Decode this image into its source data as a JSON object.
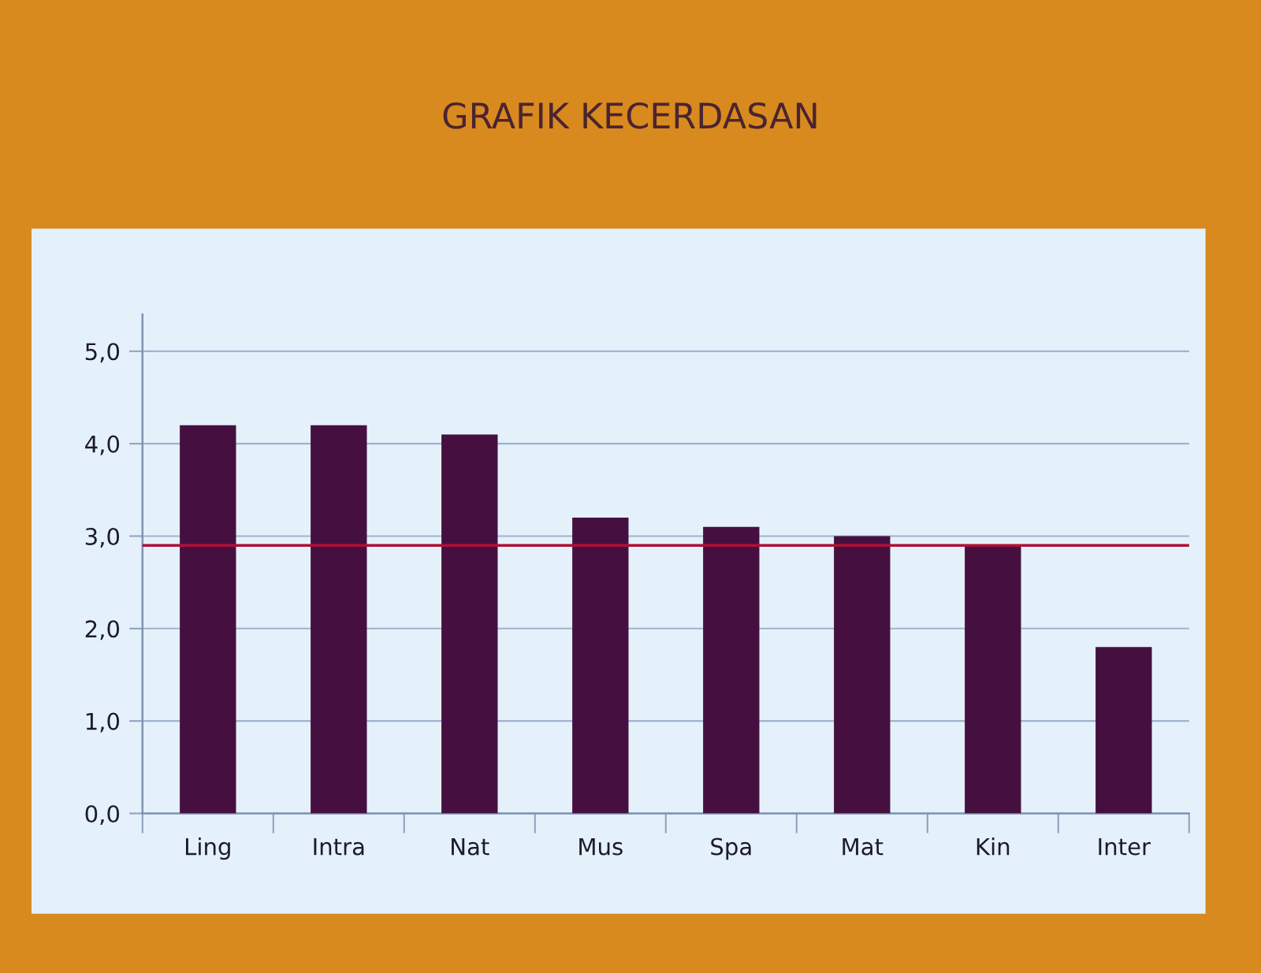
{
  "chart_data": {
    "type": "bar",
    "title": "GRAFIK KECERDASAN",
    "categories": [
      "Ling",
      "Intra",
      "Nat",
      "Mus",
      "Spa",
      "Mat",
      "Kin",
      "Inter"
    ],
    "values": [
      4.2,
      4.2,
      4.1,
      3.2,
      3.1,
      3.0,
      2.9,
      1.8
    ],
    "color": "#451040",
    "ylim": [
      0,
      5.4
    ],
    "yticks": [
      {
        "value": 0,
        "label": "0,0"
      },
      {
        "value": 1,
        "label": "1,0"
      },
      {
        "value": 2,
        "label": "2,0"
      },
      {
        "value": 3,
        "label": "3,0"
      },
      {
        "value": 4,
        "label": "4,0"
      },
      {
        "value": 5,
        "label": "5,0"
      }
    ],
    "grid": "y",
    "ref_lines": [
      {
        "axis": "y",
        "value": 2.9,
        "color": "#b01035"
      }
    ]
  }
}
